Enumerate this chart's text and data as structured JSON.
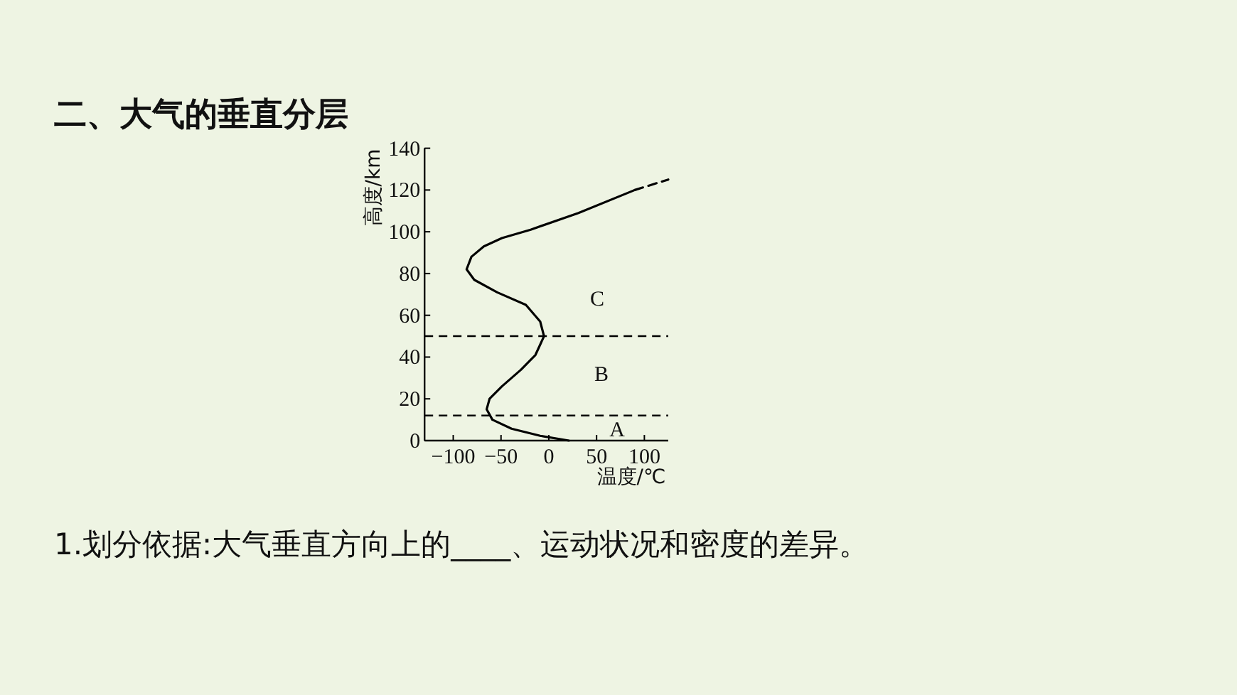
{
  "chart_data": {
    "type": "line",
    "title": "二、大气的垂直分层",
    "xlabel": "温度/℃",
    "ylabel": "高度/km",
    "xlim": [
      -130,
      125
    ],
    "ylim": [
      0,
      140
    ],
    "xticks": [
      {
        "value": -100,
        "label": "−100"
      },
      {
        "value": -50,
        "label": "−50"
      },
      0,
      50,
      100
    ],
    "yticks": [
      0,
      20,
      40,
      60,
      80,
      100,
      120,
      140
    ],
    "grid": false,
    "series": [
      {
        "color": "#000000",
        "line_style": "solid",
        "x": [
          21,
          -9,
          -39,
          -59,
          -65,
          -62,
          -49,
          -29,
          -14,
          -5,
          -9,
          -24,
          -54,
          -78,
          -86,
          -81,
          -68,
          -49,
          -19,
          31,
          90
        ],
        "values": [
          0,
          2.3,
          5.7,
          10,
          15,
          20,
          26,
          34,
          41,
          50,
          57,
          65,
          71,
          77,
          82,
          88,
          93,
          97,
          101,
          109,
          120
        ]
      },
      {
        "color": "#000000",
        "line_style": "dashed",
        "x": [
          90,
          125
        ],
        "values": [
          120,
          125
        ]
      }
    ],
    "ref_lines": [
      {
        "axis": "y",
        "value": 50,
        "line_style": "dashed",
        "color": "#000000"
      },
      {
        "axis": "y",
        "value": 12,
        "line_style": "dashed",
        "color": "#000000"
      }
    ],
    "annotations": [
      "C",
      "B",
      "A",
      "1.划分依据:大气垂直方向上的____、运动状况和密度的差异。"
    ]
  }
}
